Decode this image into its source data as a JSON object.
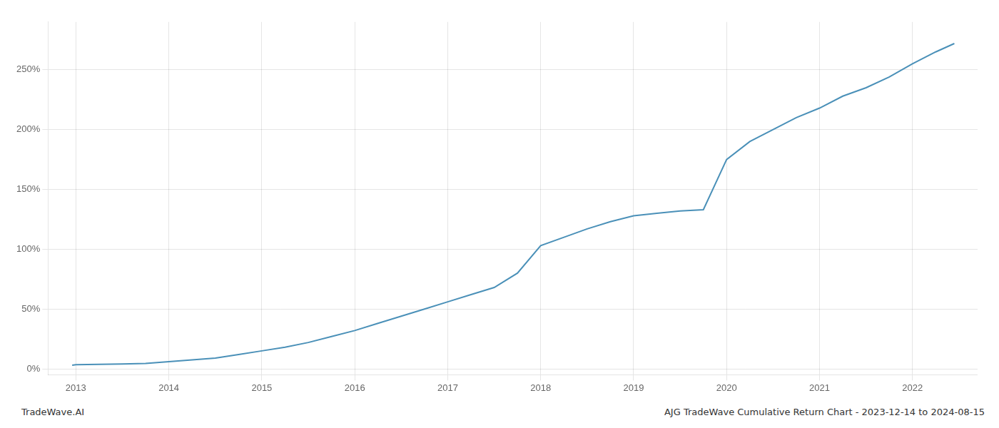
{
  "chart_data": {
    "type": "line",
    "title": "AJG TradeWave Cumulative Return Chart - 2023-12-14 to 2024-08-15",
    "annotations": [
      "TradeWave.AI"
    ],
    "x": [
      2012.96,
      2013.0,
      2013.25,
      2013.5,
      2013.75,
      2014.0,
      2014.25,
      2014.5,
      2014.75,
      2015.0,
      2015.25,
      2015.5,
      2015.75,
      2016.0,
      2016.25,
      2016.5,
      2016.75,
      2017.0,
      2017.25,
      2017.5,
      2017.75,
      2018.0,
      2018.25,
      2018.5,
      2018.75,
      2019.0,
      2019.25,
      2019.5,
      2019.75,
      2020.0,
      2020.25,
      2020.5,
      2020.75,
      2021.0,
      2021.25,
      2021.5,
      2021.75,
      2022.0,
      2022.25,
      2022.45
    ],
    "values": [
      0.03,
      0.035,
      0.038,
      0.04,
      0.045,
      0.06,
      0.075,
      0.09,
      0.12,
      0.15,
      0.18,
      0.22,
      0.27,
      0.32,
      0.38,
      0.44,
      0.5,
      0.56,
      0.62,
      0.68,
      0.8,
      1.03,
      1.1,
      1.17,
      1.23,
      1.28,
      1.3,
      1.32,
      1.33,
      1.75,
      1.9,
      2.0,
      2.1,
      2.18,
      2.28,
      2.35,
      2.44,
      2.55,
      2.65,
      2.72
    ],
    "color": "#4a90b8",
    "xlim": [
      2012.7,
      2022.7
    ],
    "ylim": [
      -0.05,
      2.9
    ],
    "xticks": [
      2013,
      2014,
      2015,
      2016,
      2017,
      2018,
      2019,
      2020,
      2021,
      2022
    ],
    "yticks": [
      {
        "value": 0.0,
        "label": "0%"
      },
      {
        "value": 0.5,
        "label": "50%"
      },
      {
        "value": 1.0,
        "label": "100%"
      },
      {
        "value": 1.5,
        "label": "150%"
      },
      {
        "value": 2.0,
        "label": "200%"
      },
      {
        "value": 2.5,
        "label": "250%"
      }
    ],
    "grid": true
  }
}
